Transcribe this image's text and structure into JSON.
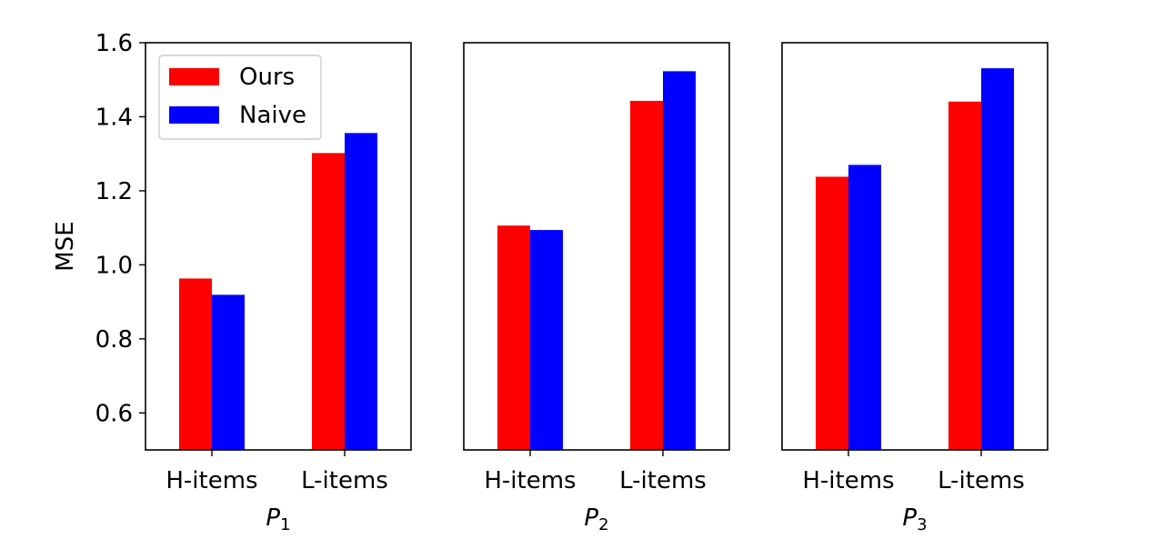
{
  "chart_data": {
    "type": "bar",
    "ylabel": "MSE",
    "ylim": [
      0.5,
      1.6
    ],
    "yticks": [
      "0.6",
      "0.8",
      "1.0",
      "1.2",
      "1.4",
      "1.6"
    ],
    "grid": false,
    "legend": {
      "placement": "top-left of first panel",
      "entries": [
        {
          "name": "Ours",
          "color": "#ff0000"
        },
        {
          "name": "Naive",
          "color": "#0000ff"
        }
      ]
    },
    "panels": [
      {
        "xlabel": {
          "main": "P",
          "sub": "1"
        },
        "categories": [
          "H-items",
          "L-items"
        ],
        "series": [
          {
            "name": "Ours",
            "color": "#ff0000",
            "values": [
              0.963,
              1.302
            ]
          },
          {
            "name": "Naive",
            "color": "#0000ff",
            "values": [
              0.919,
              1.356
            ]
          }
        ]
      },
      {
        "xlabel": {
          "main": "P",
          "sub": "2"
        },
        "categories": [
          "H-items",
          "L-items"
        ],
        "series": [
          {
            "name": "Ours",
            "color": "#ff0000",
            "values": [
              1.106,
              1.443
            ]
          },
          {
            "name": "Naive",
            "color": "#0000ff",
            "values": [
              1.094,
              1.523
            ]
          }
        ]
      },
      {
        "xlabel": {
          "main": "P",
          "sub": "3"
        },
        "categories": [
          "H-items",
          "L-items"
        ],
        "series": [
          {
            "name": "Ours",
            "color": "#ff0000",
            "values": [
              1.238,
              1.441
            ]
          },
          {
            "name": "Naive",
            "color": "#0000ff",
            "values": [
              1.27,
              1.531
            ]
          }
        ]
      }
    ]
  }
}
